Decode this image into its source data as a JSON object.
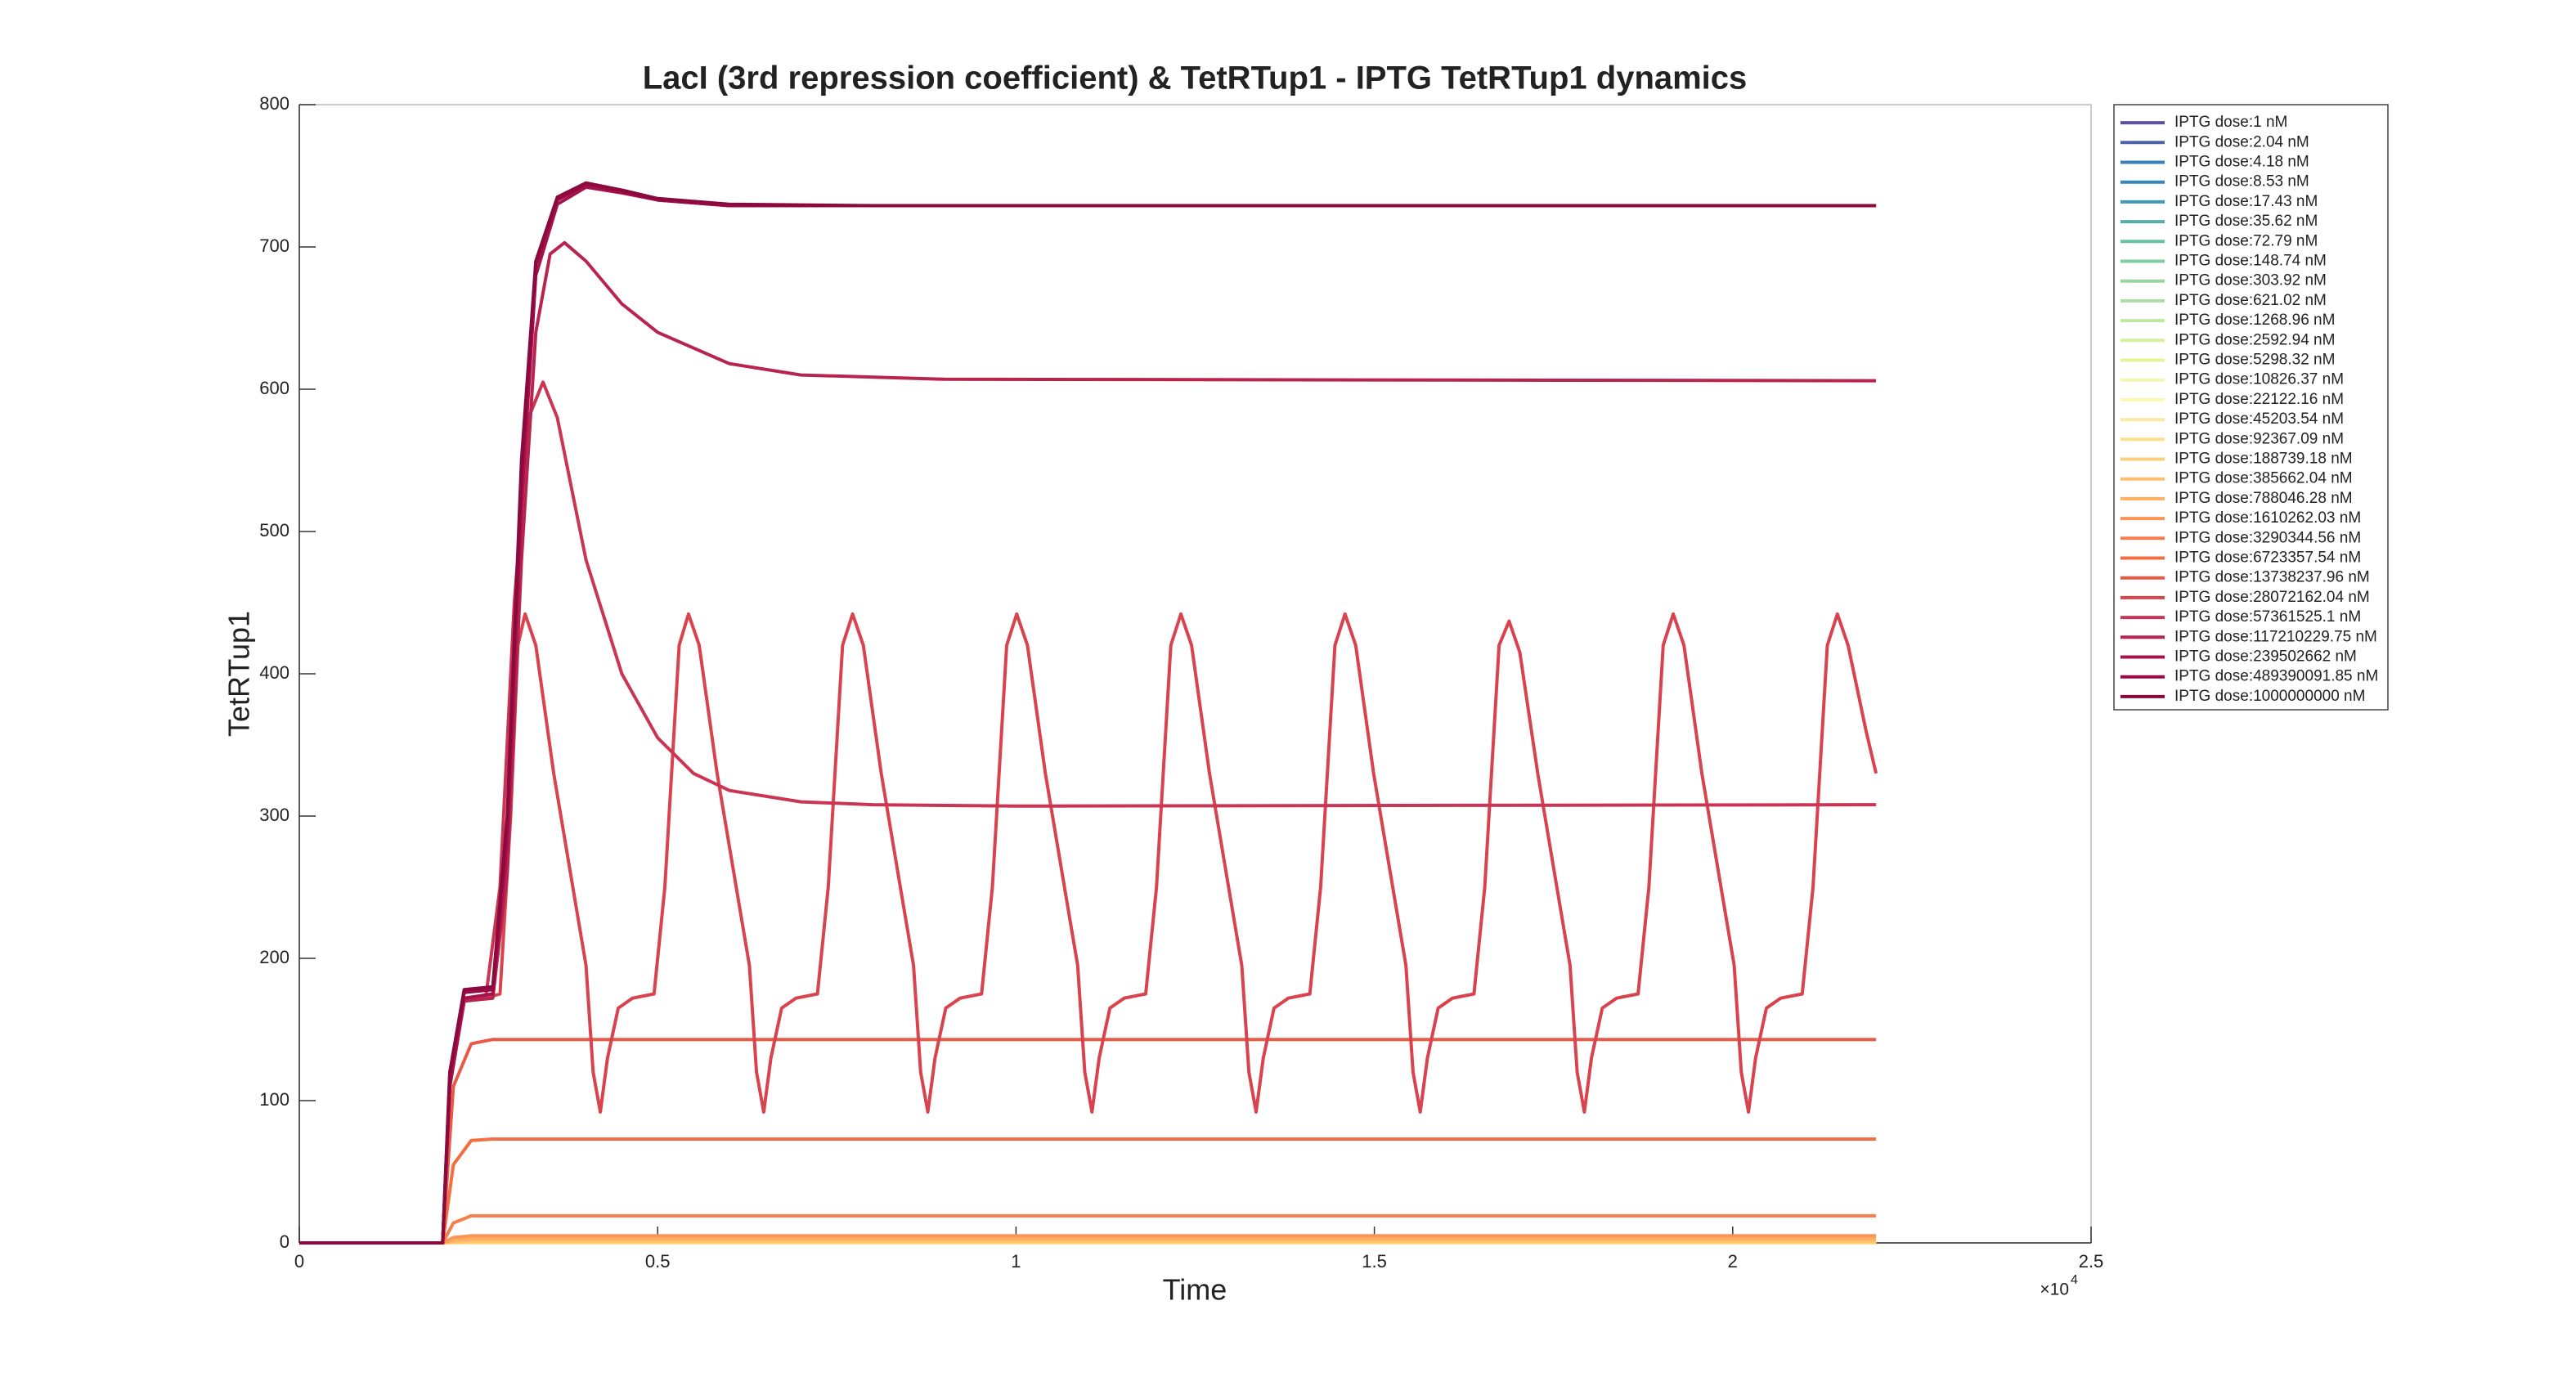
{
  "chart_data": {
    "type": "line",
    "title": "LacI (3rd repression coefficient) & TetRTup1 - IPTG TetRTup1 dynamics",
    "x_label": "Time",
    "y_label": "TetRTup1",
    "x_multiplier": {
      "base": "×10",
      "exponent": "4"
    },
    "xlim": [
      0,
      25000
    ],
    "xticks": [
      0,
      {
        "value": 5000,
        "label": "0.5"
      },
      {
        "value": 10000,
        "label": "1"
      },
      {
        "value": 15000,
        "label": "1.5"
      },
      {
        "value": 20000,
        "label": "2"
      },
      {
        "value": 25000,
        "label": "2.5"
      }
    ],
    "ylim": [
      0,
      800
    ],
    "yticks": [
      0,
      100,
      200,
      300,
      400,
      500,
      600,
      700,
      800
    ],
    "legend": "upper right",
    "series": [
      {
        "name": "IPTG dose:1 nM",
        "color": "#5e4fa2",
        "x": [
          0,
          22000
        ],
        "values": [
          0,
          0
        ]
      },
      {
        "name": "IPTG dose:2.04 nM",
        "color": "#4a62a8",
        "x": [
          0,
          22000
        ],
        "values": [
          0,
          0
        ]
      },
      {
        "name": "IPTG dose:4.18 nM",
        "color": "#3880b9",
        "x": [
          0,
          22000
        ],
        "values": [
          0,
          0
        ]
      },
      {
        "name": "IPTG dose:8.53 nM",
        "color": "#3288bd",
        "x": [
          0,
          22000
        ],
        "values": [
          0,
          0
        ]
      },
      {
        "name": "IPTG dose:17.43 nM",
        "color": "#3e9bb5",
        "x": [
          0,
          22000
        ],
        "values": [
          0,
          0
        ]
      },
      {
        "name": "IPTG dose:35.62 nM",
        "color": "#54aead",
        "x": [
          0,
          22000
        ],
        "values": [
          0,
          0
        ]
      },
      {
        "name": "IPTG dose:72.79 nM",
        "color": "#66c2a5",
        "x": [
          0,
          22000
        ],
        "values": [
          0,
          0
        ]
      },
      {
        "name": "IPTG dose:148.74 nM",
        "color": "#80cca4",
        "x": [
          0,
          22000
        ],
        "values": [
          0,
          0
        ]
      },
      {
        "name": "IPTG dose:303.92 nM",
        "color": "#99d5a4",
        "x": [
          0,
          22000
        ],
        "values": [
          0,
          0
        ]
      },
      {
        "name": "IPTG dose:621.02 nM",
        "color": "#abdda4",
        "x": [
          0,
          22000
        ],
        "values": [
          0,
          0
        ]
      },
      {
        "name": "IPTG dose:1268.96 nM",
        "color": "#c3e6a0",
        "x": [
          0,
          22000
        ],
        "values": [
          0,
          0
        ]
      },
      {
        "name": "IPTG dose:2592.94 nM",
        "color": "#d8ef9e",
        "x": [
          0,
          22000
        ],
        "values": [
          0,
          0
        ]
      },
      {
        "name": "IPTG dose:5298.32 nM",
        "color": "#e6f598",
        "x": [
          0,
          22000
        ],
        "values": [
          0,
          0
        ]
      },
      {
        "name": "IPTG dose:10826.37 nM",
        "color": "#f2f8ae",
        "x": [
          0,
          22000
        ],
        "values": [
          0,
          0
        ]
      },
      {
        "name": "IPTG dose:22122.16 nM",
        "color": "#fbf8b0",
        "x": [
          0,
          22000
        ],
        "values": [
          0,
          0
        ]
      },
      {
        "name": "IPTG dose:45203.54 nM",
        "color": "#fee9a0",
        "x": [
          0,
          22000
        ],
        "values": [
          0,
          0
        ]
      },
      {
        "name": "IPTG dose:92367.09 nM",
        "color": "#fee08b",
        "x": [
          0,
          22000
        ],
        "values": [
          0,
          0
        ]
      },
      {
        "name": "IPTG dose:188739.18 nM",
        "color": "#fdcd78",
        "x": [
          0,
          2000,
          2150,
          2400,
          2700,
          22000
        ],
        "values": [
          0,
          0,
          0.5,
          0.7,
          0.7,
          0.7
        ]
      },
      {
        "name": "IPTG dose:385662.04 nM",
        "color": "#fdbe6e",
        "x": [
          0,
          2000,
          2150,
          2400,
          2700,
          22000
        ],
        "values": [
          0,
          0,
          1.1,
          1.5,
          1.5,
          1.5
        ]
      },
      {
        "name": "IPTG dose:788046.28 nM",
        "color": "#fdae61",
        "x": [
          0,
          2000,
          2150,
          2400,
          2700,
          22000
        ],
        "values": [
          0,
          0,
          2.2,
          3,
          3,
          3
        ]
      },
      {
        "name": "IPTG dose:1610262.03 nM",
        "color": "#f99655",
        "x": [
          0,
          2000,
          2150,
          2400,
          2700,
          22000
        ],
        "values": [
          0,
          0,
          3.8,
          5,
          5,
          5
        ]
      },
      {
        "name": "IPTG dose:3290344.56 nM",
        "color": "#f67e4b",
        "x": [
          0,
          2000,
          2150,
          2400,
          2700,
          22000
        ],
        "values": [
          0,
          0,
          14,
          19,
          19,
          19
        ]
      },
      {
        "name": "IPTG dose:6723357.54 nM",
        "color": "#f46d43",
        "x": [
          0,
          2000,
          2150,
          2400,
          2700,
          22000
        ],
        "values": [
          0,
          0,
          55,
          72,
          73,
          73
        ]
      },
      {
        "name": "IPTG dose:13738237.96 nM",
        "color": "#e85a47",
        "x": [
          0,
          2000,
          2150,
          2400,
          2700,
          22000
        ],
        "values": [
          0,
          0,
          110,
          140,
          143,
          143
        ]
      },
      {
        "name": "IPTG dose:28072162.04 nM",
        "color": "#d8434e",
        "x": [
          0,
          2000,
          2100,
          2300,
          2600,
          2800,
          2950,
          3050,
          3150,
          3300,
          3550,
          3850,
          4000,
          4100,
          4200,
          4300,
          4450,
          4650,
          4950,
          5100,
          5300,
          5430,
          5580,
          5830,
          6130,
          6280,
          6380,
          6480,
          6580,
          6730,
          6930,
          7230,
          7380,
          7580,
          7720,
          7870,
          8120,
          8420,
          8570,
          8670,
          8770,
          8870,
          9020,
          9220,
          9520,
          9670,
          9870,
          10010,
          10160,
          10410,
          10710,
          10860,
          10960,
          11060,
          11160,
          11310,
          11510,
          11810,
          11960,
          12160,
          12300,
          12450,
          12700,
          13000,
          13150,
          13250,
          13350,
          13450,
          13600,
          13800,
          14100,
          14250,
          14450,
          14590,
          14740,
          14990,
          15290,
          15440,
          15540,
          15640,
          15740,
          15890,
          16090,
          16390,
          16540,
          16740,
          16880,
          17030,
          17280,
          17580,
          17730,
          17830,
          17930,
          18030,
          18180,
          18380,
          18680,
          18830,
          19030,
          19170,
          19320,
          19570,
          19870,
          20020,
          20120,
          20220,
          20320,
          20470,
          20670,
          20970,
          21120,
          21320,
          21460,
          21610,
          21860,
          22000
        ],
        "values": [
          0,
          0,
          110,
          170,
          172,
          175,
          300,
          420,
          442,
          420,
          330,
          240,
          195,
          120,
          92,
          130,
          165,
          172,
          175,
          250,
          420,
          442,
          420,
          330,
          240,
          195,
          120,
          92,
          130,
          165,
          172,
          175,
          250,
          420,
          442,
          420,
          330,
          240,
          195,
          120,
          92,
          130,
          165,
          172,
          175,
          250,
          420,
          442,
          420,
          330,
          240,
          195,
          120,
          92,
          130,
          165,
          172,
          175,
          250,
          420,
          442,
          420,
          330,
          240,
          195,
          120,
          92,
          130,
          165,
          172,
          175,
          250,
          420,
          442,
          420,
          330,
          240,
          195,
          120,
          92,
          130,
          165,
          172,
          175,
          250,
          420,
          437,
          415,
          330,
          240,
          195,
          120,
          92,
          130,
          165,
          172,
          175,
          250,
          420,
          442,
          420,
          330,
          240,
          195,
          120,
          92,
          130,
          165,
          172,
          175,
          250,
          420,
          442,
          420,
          360,
          330
        ]
      },
      {
        "name": "IPTG dose:57361525.1 nM",
        "color": "#c93552",
        "x": [
          0,
          2000,
          2100,
          2300,
          2600,
          2800,
          3000,
          3200,
          3400,
          3600,
          4000,
          4500,
          5000,
          5500,
          6000,
          7000,
          8000,
          10000,
          22000
        ],
        "values": [
          0,
          0,
          110,
          170,
          172,
          250,
          450,
          580,
          605,
          580,
          480,
          400,
          355,
          330,
          318,
          310,
          308,
          307,
          308
        ]
      },
      {
        "name": "IPTG dose:117210229.75 nM",
        "color": "#b8244e",
        "x": [
          0,
          2000,
          2100,
          2300,
          2700,
          2900,
          3100,
          3300,
          3500,
          3700,
          4000,
          4500,
          5000,
          6000,
          7000,
          9000,
          22000
        ],
        "values": [
          0,
          0,
          110,
          170,
          172,
          260,
          480,
          640,
          695,
          703,
          690,
          660,
          640,
          618,
          610,
          607,
          606
        ]
      },
      {
        "name": "IPTG dose:239502662 nM",
        "color": "#a8124a",
        "x": [
          0,
          2000,
          2100,
          2300,
          2700,
          2900,
          3100,
          3300,
          3600,
          4000,
          4500,
          5000,
          6000,
          8000,
          22000
        ],
        "values": [
          0,
          0,
          110,
          172,
          175,
          280,
          520,
          680,
          730,
          742,
          738,
          733,
          729,
          729,
          729
        ]
      },
      {
        "name": "IPTG dose:489390091.85 nM",
        "color": "#9a0a46",
        "x": [
          0,
          2000,
          2100,
          2300,
          2700,
          2900,
          3100,
          3300,
          3600,
          4000,
          4500,
          5000,
          6000,
          8000,
          22000
        ],
        "values": [
          0,
          0,
          118,
          176,
          178,
          295,
          540,
          688,
          733,
          744,
          739,
          733,
          729,
          729,
          729
        ]
      },
      {
        "name": "IPTG dose:1000000000 nM",
        "color": "#8a0a3e",
        "x": [
          0,
          2000,
          2100,
          2300,
          2700,
          2900,
          3100,
          3300,
          3600,
          4000,
          4500,
          5000,
          6000,
          8000,
          22000
        ],
        "values": [
          0,
          0,
          120,
          178,
          180,
          300,
          550,
          690,
          735,
          745,
          740,
          734,
          730,
          729,
          729
        ]
      }
    ]
  }
}
